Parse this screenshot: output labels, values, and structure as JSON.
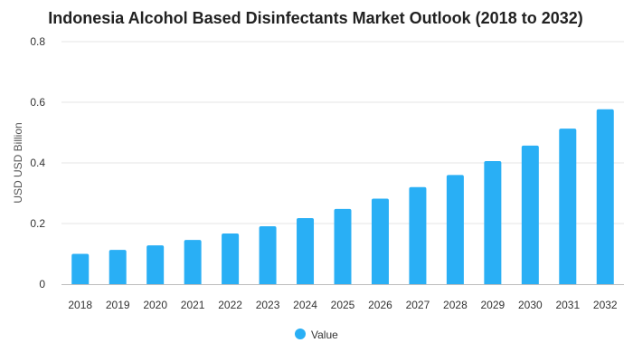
{
  "chart_data": {
    "type": "bar",
    "title": "Indonesia Alcohol Based Disinfectants Market Outlook (2018 to 2032)",
    "xlabel": "",
    "ylabel": "USD USD Billion",
    "ylim": [
      0,
      0.8
    ],
    "yticks": [
      "0",
      "0.2",
      "0.4",
      "0.6",
      "0.8"
    ],
    "ytick_values": [
      0,
      0.2,
      0.4,
      0.6,
      0.8
    ],
    "categories": [
      "2018",
      "2019",
      "2020",
      "2021",
      "2022",
      "2023",
      "2024",
      "2025",
      "2026",
      "2027",
      "2028",
      "2029",
      "2030",
      "2031",
      "2032"
    ],
    "series": [
      {
        "name": "Value",
        "color": "#29aff5",
        "values": [
          0.1,
          0.113,
          0.128,
          0.146,
          0.167,
          0.191,
          0.218,
          0.248,
          0.282,
          0.32,
          0.36,
          0.406,
          0.457,
          0.513,
          0.577
        ]
      }
    ],
    "grid": true,
    "legend_position": "bottom-center"
  }
}
